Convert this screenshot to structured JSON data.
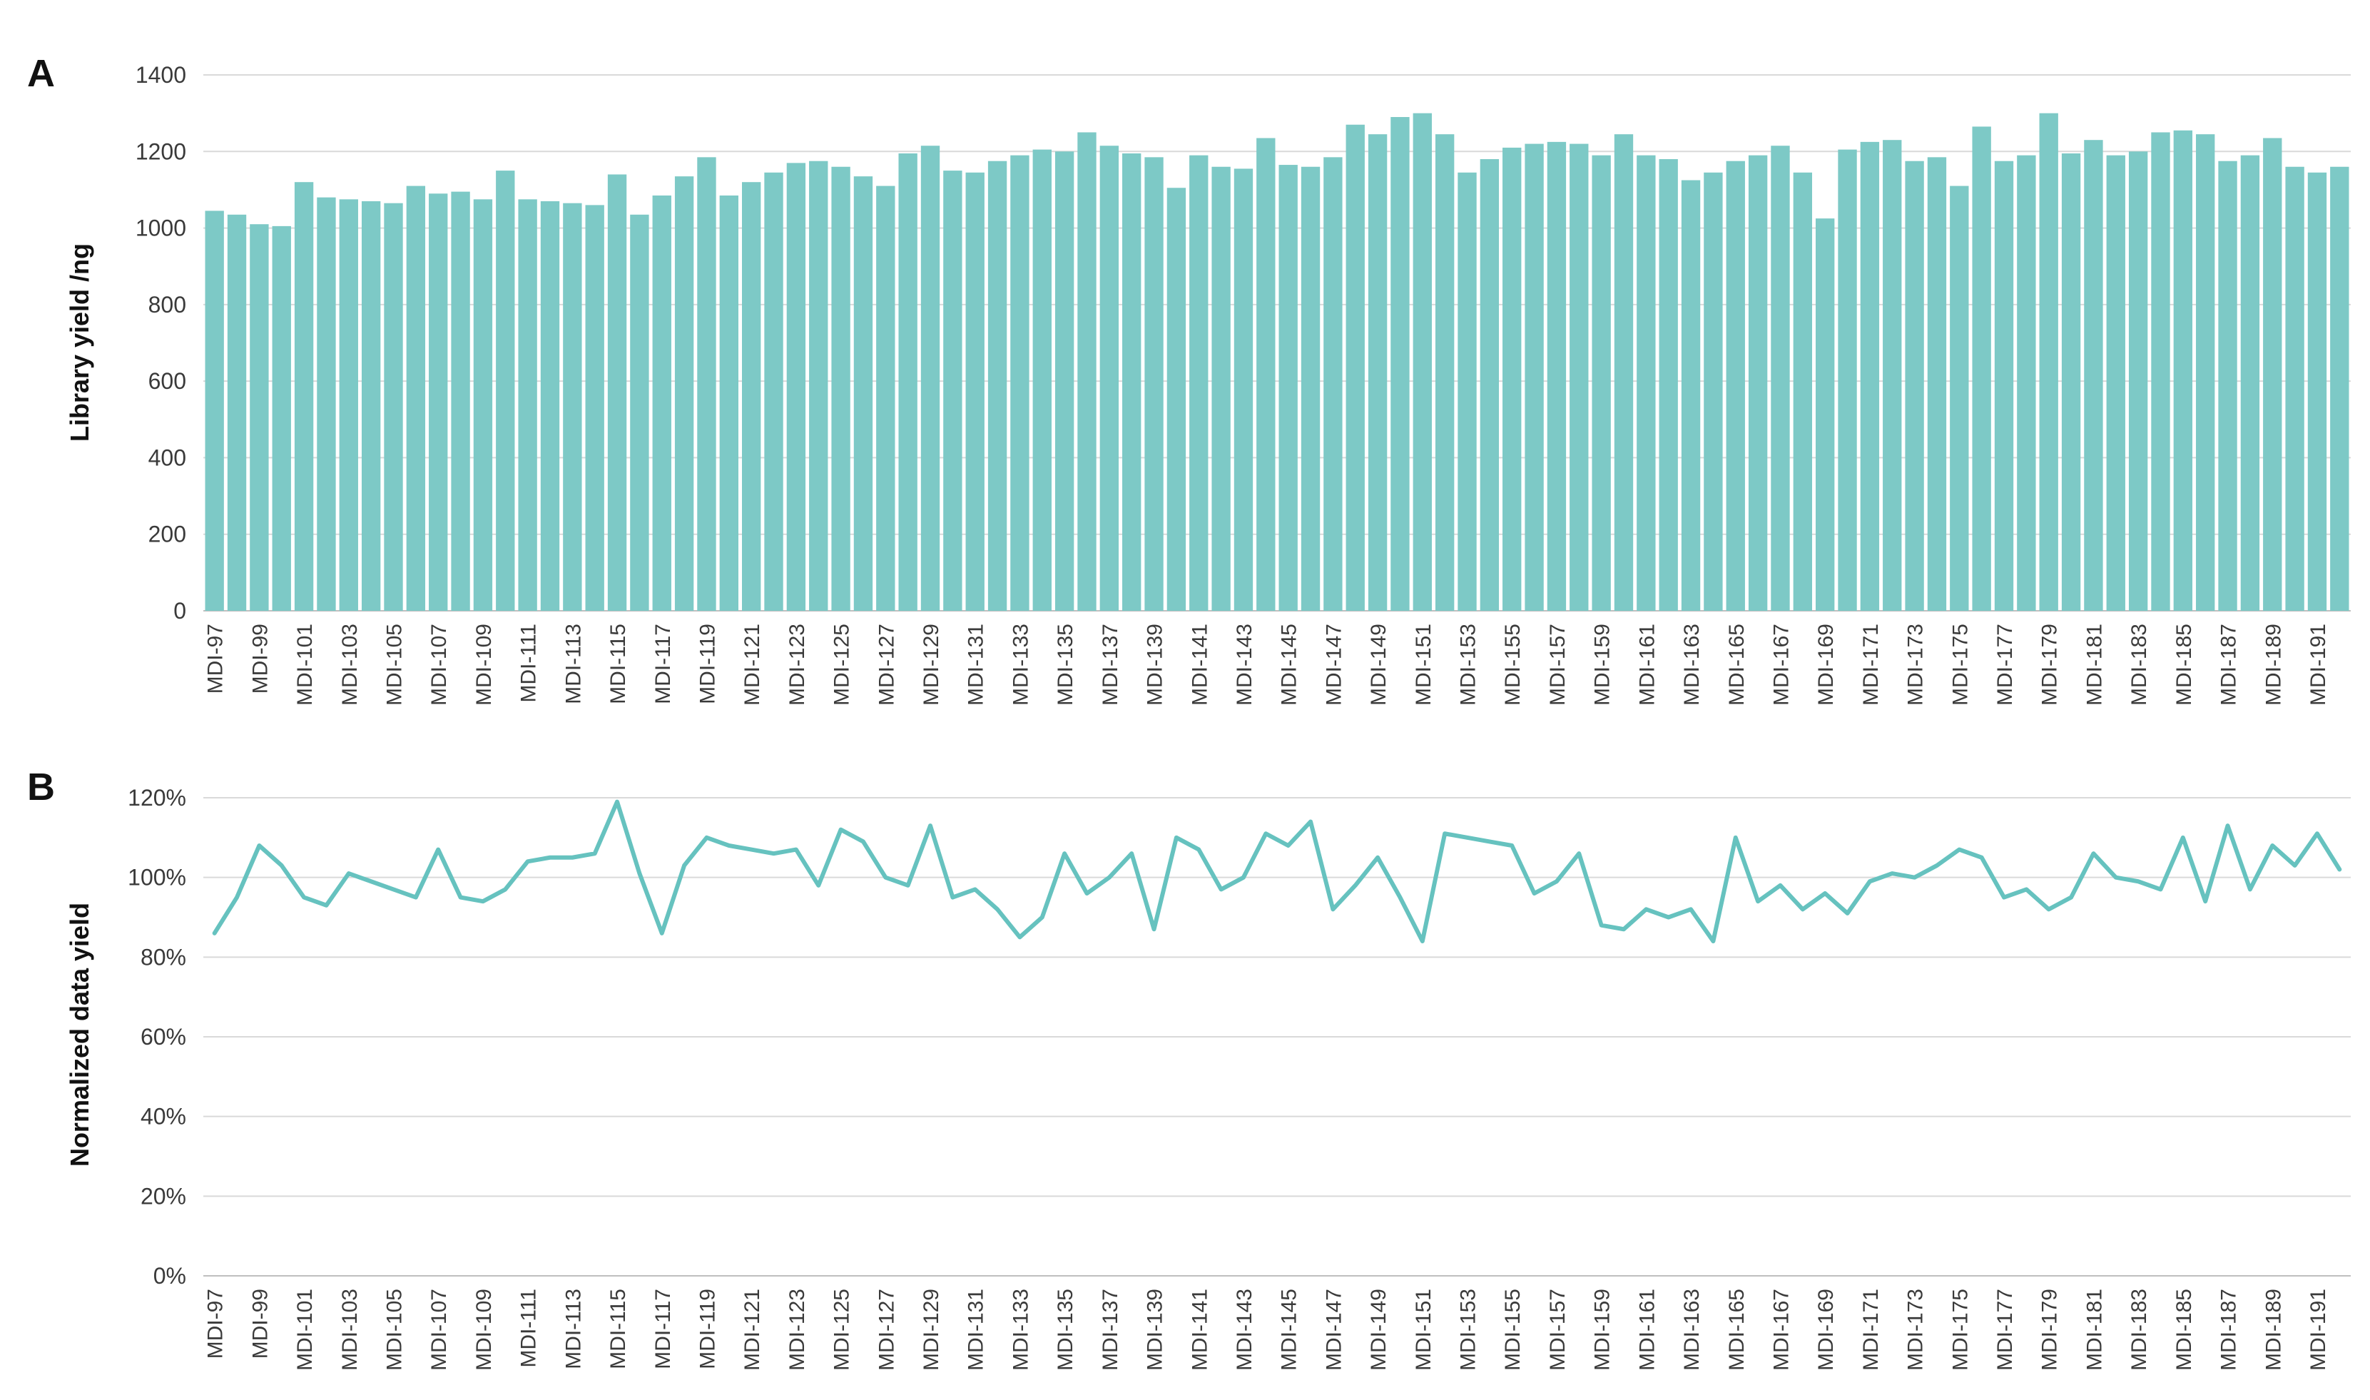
{
  "page": {
    "background": "#ffffff",
    "text_color": "#3a3a3a"
  },
  "panels": {
    "a": {
      "letter": "A",
      "ylabel": "Library yield /ng"
    },
    "b": {
      "letter": "B",
      "ylabel": "Normalized data yield"
    }
  },
  "chart_data": [
    {
      "type": "bar",
      "panel": "A",
      "title": "",
      "xlabel": "",
      "ylabel": "Library yield /ng",
      "ylim": [
        0,
        1400
      ],
      "ytick_values": [
        0,
        200,
        400,
        600,
        800,
        1000,
        1200,
        1400
      ],
      "ytick_labels": [
        "0",
        "200",
        "400",
        "600",
        "800",
        "1000",
        "1200",
        "1400"
      ],
      "grid": true,
      "legend": "none",
      "bar_color": "#7dc9c6",
      "x_tick_labels": [
        "MDI-97",
        "MDI-99",
        "MDI-101",
        "MDI-103",
        "MDI-105",
        "MDI-107",
        "MDI-109",
        "MDI-111",
        "MDI-113",
        "MDI-115",
        "MDI-117",
        "MDI-119",
        "MDI-121",
        "MDI-123",
        "MDI-125",
        "MDI-127",
        "MDI-129",
        "MDI-131",
        "MDI-133",
        "MDI-135",
        "MDI-137",
        "MDI-139",
        "MDI-141",
        "MDI-143",
        "MDI-145",
        "MDI-147",
        "MDI-149",
        "MDI-151",
        "MDI-153",
        "MDI-155",
        "MDI-157",
        "MDI-159",
        "MDI-161",
        "MDI-163",
        "MDI-165",
        "MDI-167",
        "MDI-169",
        "MDI-171",
        "MDI-173",
        "MDI-175",
        "MDI-177",
        "MDI-179",
        "MDI-181",
        "MDI-183",
        "MDI-185",
        "MDI-187",
        "MDI-189",
        "MDI-191"
      ],
      "values": [
        1045,
        1035,
        1010,
        1005,
        1120,
        1080,
        1075,
        1070,
        1065,
        1110,
        1090,
        1095,
        1075,
        1150,
        1075,
        1070,
        1065,
        1060,
        1140,
        1035,
        1085,
        1135,
        1185,
        1085,
        1120,
        1145,
        1170,
        1175,
        1160,
        1135,
        1110,
        1195,
        1215,
        1150,
        1145,
        1175,
        1190,
        1205,
        1200,
        1250,
        1215,
        1195,
        1185,
        1105,
        1190,
        1160,
        1155,
        1235,
        1165,
        1160,
        1185,
        1270,
        1245,
        1290,
        1300,
        1245,
        1145,
        1180,
        1210,
        1220,
        1225,
        1220,
        1190,
        1245,
        1190,
        1180,
        1125,
        1145,
        1175,
        1190,
        1215,
        1145,
        1025,
        1205,
        1225,
        1230,
        1175,
        1185,
        1110,
        1265,
        1175,
        1190,
        1300,
        1195,
        1230,
        1190,
        1200,
        1250,
        1255,
        1245,
        1175,
        1190,
        1235,
        1160,
        1145,
        1160
      ]
    },
    {
      "type": "line",
      "panel": "B",
      "title": "",
      "xlabel": "",
      "ylabel": "Normalized data yield",
      "ylim_percent": [
        0,
        120
      ],
      "ytick_values": [
        0,
        20,
        40,
        60,
        80,
        100,
        120
      ],
      "ytick_labels": [
        "0%",
        "20%",
        "40%",
        "60%",
        "80%",
        "100%",
        "120%"
      ],
      "grid": true,
      "legend": "none",
      "line_color": "#66c2bf",
      "x_tick_labels": [
        "MDI-97",
        "MDI-99",
        "MDI-101",
        "MDI-103",
        "MDI-105",
        "MDI-107",
        "MDI-109",
        "MDI-111",
        "MDI-113",
        "MDI-115",
        "MDI-117",
        "MDI-119",
        "MDI-121",
        "MDI-123",
        "MDI-125",
        "MDI-127",
        "MDI-129",
        "MDI-131",
        "MDI-133",
        "MDI-135",
        "MDI-137",
        "MDI-139",
        "MDI-141",
        "MDI-143",
        "MDI-145",
        "MDI-147",
        "MDI-149",
        "MDI-151",
        "MDI-153",
        "MDI-155",
        "MDI-157",
        "MDI-159",
        "MDI-161",
        "MDI-163",
        "MDI-165",
        "MDI-167",
        "MDI-169",
        "MDI-171",
        "MDI-173",
        "MDI-175",
        "MDI-177",
        "MDI-179",
        "MDI-181",
        "MDI-183",
        "MDI-185",
        "MDI-187",
        "MDI-189",
        "MDI-191"
      ],
      "values_percent": [
        86,
        95,
        108,
        103,
        95,
        93,
        101,
        99,
        97,
        95,
        107,
        95,
        94,
        97,
        104,
        105,
        105,
        106,
        119,
        101,
        86,
        103,
        110,
        108,
        107,
        106,
        107,
        98,
        112,
        109,
        100,
        98,
        113,
        95,
        97,
        92,
        85,
        90,
        106,
        96,
        100,
        106,
        87,
        110,
        107,
        97,
        100,
        111,
        108,
        114,
        92,
        98,
        105,
        95,
        84,
        111,
        110,
        109,
        108,
        96,
        99,
        106,
        88,
        87,
        92,
        90,
        92,
        84,
        110,
        94,
        98,
        92,
        96,
        91,
        99,
        101,
        100,
        103,
        107,
        105,
        95,
        97,
        92,
        95,
        106,
        100,
        99,
        97,
        110,
        94,
        113,
        97,
        108,
        103,
        111,
        102
      ]
    }
  ]
}
